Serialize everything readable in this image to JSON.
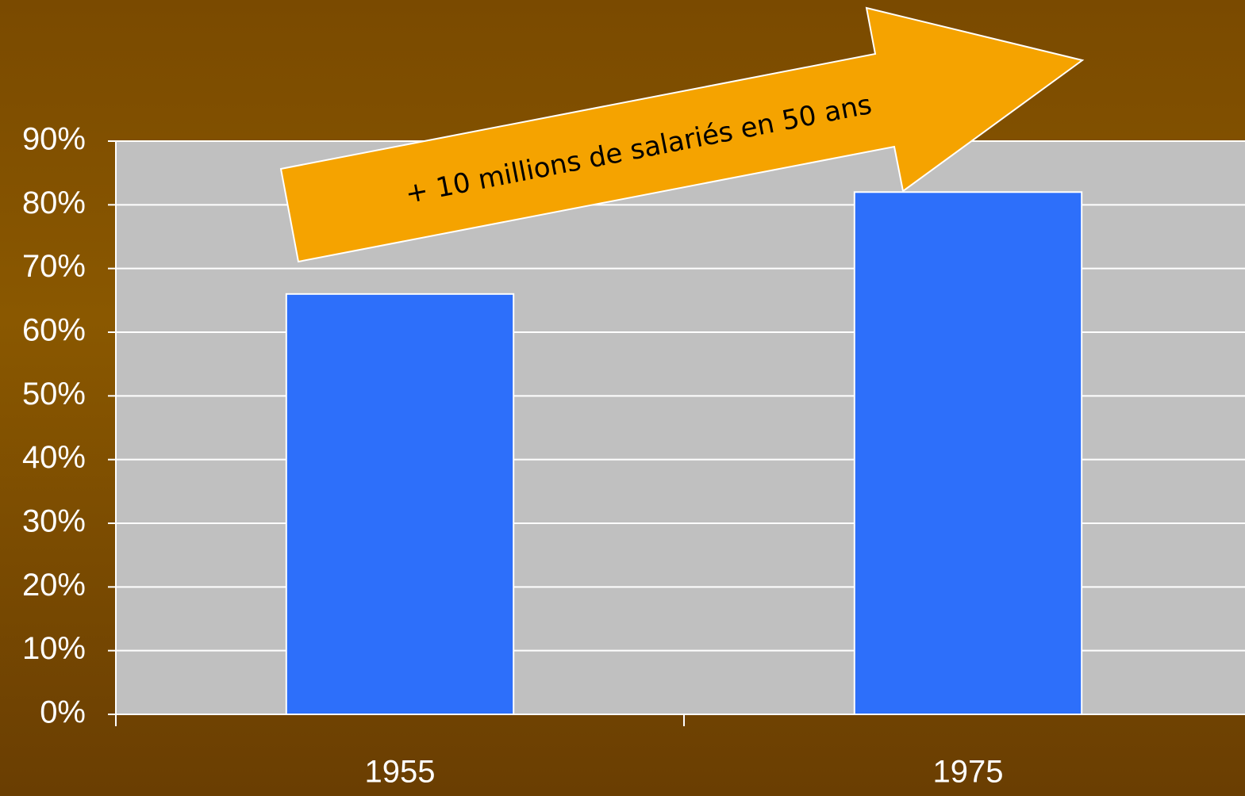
{
  "chart_data": {
    "type": "bar",
    "annotation": "+ 10 millions de salariés en 50 ans",
    "categories": [
      "1955",
      "1975"
    ],
    "values": [
      66,
      82
    ],
    "color": "#2d6ffa",
    "ylim": [
      0,
      90
    ],
    "yticks": [
      {
        "value": 0,
        "label": "0%"
      },
      {
        "value": 10,
        "label": "10%"
      },
      {
        "value": 20,
        "label": "20%"
      },
      {
        "value": 30,
        "label": "30%"
      },
      {
        "value": 40,
        "label": "40%"
      },
      {
        "value": 50,
        "label": "50%"
      },
      {
        "value": 60,
        "label": "60%"
      },
      {
        "value": 70,
        "label": "70%"
      },
      {
        "value": 80,
        "label": "80%"
      },
      {
        "value": 90,
        "label": "90%"
      }
    ],
    "grid": true
  }
}
